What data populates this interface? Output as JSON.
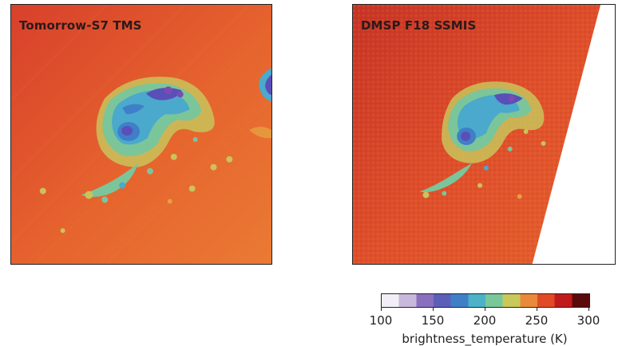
{
  "panels": [
    {
      "title": "Tomorrow-S7 TMS"
    },
    {
      "title": "DMSP F18 SSMIS"
    }
  ],
  "colorbar": {
    "ticks": [
      "100",
      "150",
      "200",
      "250",
      "300"
    ],
    "label": "brightness_temperature (K)",
    "range": [
      100,
      300
    ],
    "colormap": [
      "#f2eef7",
      "#c8b8dc",
      "#8a6fbf",
      "#5b5fb8",
      "#3f7fc8",
      "#4bb2c8",
      "#7ac79a",
      "#c9c85a",
      "#e88a3a",
      "#e24a26",
      "#c01a1a",
      "#5a0a0a"
    ]
  },
  "colors": {
    "background_warm": "#e8692e",
    "background_hot": "#d9412a",
    "storm_cool": "#4a9fd0",
    "storm_cold": "#5a4fb8",
    "swath_gap": "#ffffff"
  }
}
